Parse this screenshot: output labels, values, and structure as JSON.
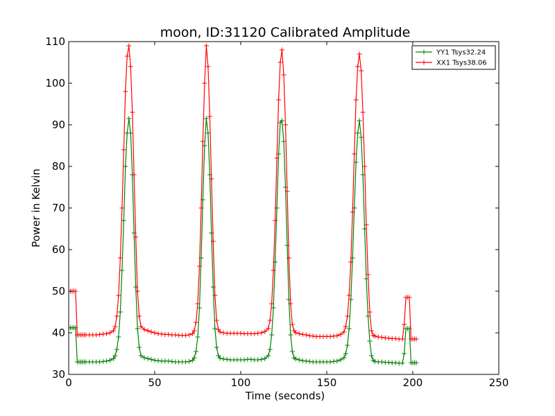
{
  "chart_data": {
    "type": "line",
    "title": "moon, ID:31120 Calibrated Amplitude",
    "xlabel": "Time (seconds)",
    "ylabel": "Power in Kelvin",
    "xlim": [
      0,
      250
    ],
    "ylim": [
      30,
      110
    ],
    "xticks": [
      0,
      50,
      100,
      150,
      200,
      250
    ],
    "yticks": [
      30,
      40,
      50,
      60,
      70,
      80,
      90,
      100,
      110
    ],
    "grid": false,
    "legend_position": "top-right",
    "marker": "+",
    "series": [
      {
        "name": "YY1 Tsys32.24",
        "color": "#008000",
        "x": [
          0,
          1,
          2,
          3,
          4,
          5,
          6,
          7,
          8,
          9,
          10,
          12,
          14,
          16,
          18,
          20,
          22,
          24,
          26,
          27,
          28,
          29,
          30,
          31,
          32,
          33,
          34,
          35,
          36,
          37,
          38,
          39,
          40,
          41,
          42,
          44,
          46,
          48,
          50,
          52,
          54,
          56,
          58,
          60,
          62,
          64,
          66,
          68,
          70,
          72,
          73,
          74,
          75,
          76,
          77,
          78,
          79,
          80,
          81,
          82,
          83,
          84,
          85,
          86,
          87,
          88,
          90,
          92,
          94,
          96,
          98,
          100,
          102,
          104,
          106,
          108,
          110,
          112,
          114,
          116,
          117,
          118,
          119,
          120,
          121,
          122,
          123,
          124,
          125,
          126,
          127,
          128,
          129,
          130,
          131,
          132,
          134,
          136,
          138,
          140,
          142,
          144,
          146,
          148,
          150,
          152,
          154,
          156,
          158,
          160,
          161,
          162,
          163,
          164,
          165,
          166,
          167,
          168,
          169,
          170,
          171,
          172,
          173,
          174,
          175,
          176,
          177,
          178,
          180,
          182,
          184,
          186,
          188,
          190,
          192,
          194,
          195,
          196,
          197,
          198,
          199,
          200,
          201,
          202
        ],
        "y": [
          41.2,
          41.2,
          41.2,
          41.2,
          41.2,
          33.0,
          33.0,
          33.0,
          33.0,
          33.0,
          33.0,
          33.0,
          33.0,
          33.0,
          33.0,
          33.1,
          33.2,
          33.4,
          33.8,
          34.5,
          36.0,
          39.0,
          45.0,
          55.0,
          67.0,
          80.0,
          88.0,
          91.5,
          88.0,
          78.0,
          64.0,
          51.0,
          41.0,
          36.5,
          34.5,
          34.0,
          33.8,
          33.6,
          33.4,
          33.3,
          33.2,
          33.2,
          33.2,
          33.1,
          33.0,
          33.0,
          33.0,
          33.0,
          33.1,
          33.4,
          34.0,
          35.5,
          39.0,
          46.0,
          58.0,
          72.0,
          85.0,
          91.5,
          88.0,
          78.0,
          64.0,
          51.0,
          41.0,
          36.5,
          34.5,
          33.9,
          33.7,
          33.6,
          33.5,
          33.5,
          33.5,
          33.5,
          33.5,
          33.6,
          33.6,
          33.5,
          33.5,
          33.6,
          33.8,
          34.5,
          36.0,
          39.5,
          46.0,
          57.0,
          70.0,
          83.0,
          90.5,
          91.0,
          86.0,
          75.0,
          61.0,
          48.0,
          39.5,
          35.5,
          34.0,
          33.7,
          33.5,
          33.3,
          33.2,
          33.1,
          33.0,
          33.0,
          33.0,
          33.0,
          33.0,
          33.0,
          33.1,
          33.2,
          33.5,
          34.0,
          35.0,
          37.0,
          41.0,
          48.0,
          58.0,
          70.0,
          81.0,
          88.0,
          91.0,
          87.0,
          78.0,
          65.0,
          53.0,
          44.0,
          38.0,
          34.5,
          33.4,
          33.1,
          33.0,
          33.0,
          32.9,
          32.9,
          32.8,
          32.8,
          32.7,
          32.7,
          35.0,
          41.0,
          41.0,
          41.0,
          32.8,
          32.8,
          32.8,
          32.8
        ]
      },
      {
        "name": "XX1 Tsys38.06",
        "color": "#ff0000",
        "x": [
          0,
          1,
          2,
          3,
          4,
          5,
          6,
          7,
          8,
          9,
          10,
          12,
          14,
          16,
          18,
          20,
          22,
          24,
          26,
          27,
          28,
          29,
          30,
          31,
          32,
          33,
          34,
          35,
          36,
          37,
          38,
          39,
          40,
          41,
          42,
          44,
          46,
          48,
          50,
          52,
          54,
          56,
          58,
          60,
          62,
          64,
          66,
          68,
          70,
          72,
          73,
          74,
          75,
          76,
          77,
          78,
          79,
          80,
          81,
          82,
          83,
          84,
          85,
          86,
          87,
          88,
          90,
          92,
          94,
          96,
          98,
          100,
          102,
          104,
          106,
          108,
          110,
          112,
          114,
          116,
          117,
          118,
          119,
          120,
          121,
          122,
          123,
          124,
          125,
          126,
          127,
          128,
          129,
          130,
          131,
          132,
          134,
          136,
          138,
          140,
          142,
          144,
          146,
          148,
          150,
          152,
          154,
          156,
          158,
          160,
          161,
          162,
          163,
          164,
          165,
          166,
          167,
          168,
          169,
          170,
          171,
          172,
          173,
          174,
          175,
          176,
          177,
          178,
          180,
          182,
          184,
          186,
          188,
          190,
          192,
          194,
          195,
          196,
          197,
          198,
          199,
          200,
          201,
          202
        ],
        "y": [
          50.0,
          50.0,
          50.0,
          50.0,
          50.0,
          39.5,
          39.5,
          39.5,
          39.5,
          39.5,
          39.5,
          39.5,
          39.5,
          39.5,
          39.6,
          39.7,
          39.8,
          40.0,
          40.5,
          41.5,
          44.0,
          49.0,
          58.0,
          70.0,
          84.0,
          98.0,
          106.5,
          109.0,
          104.0,
          93.0,
          78.0,
          63.0,
          50.0,
          44.0,
          41.5,
          40.8,
          40.5,
          40.2,
          40.0,
          39.8,
          39.7,
          39.6,
          39.6,
          39.5,
          39.5,
          39.4,
          39.4,
          39.4,
          39.5,
          39.8,
          40.5,
          42.5,
          47.0,
          56.0,
          70.0,
          86.0,
          100.0,
          109.0,
          104.0,
          92.0,
          77.0,
          62.0,
          49.0,
          43.0,
          40.8,
          40.2,
          40.0,
          39.9,
          39.9,
          39.9,
          39.9,
          39.9,
          39.8,
          39.8,
          39.8,
          39.8,
          39.9,
          40.0,
          40.3,
          41.0,
          43.0,
          47.0,
          55.0,
          67.0,
          82.0,
          96.0,
          105.0,
          108.0,
          102.0,
          90.0,
          74.0,
          58.0,
          47.0,
          42.0,
          40.5,
          40.0,
          39.8,
          39.6,
          39.5,
          39.3,
          39.2,
          39.1,
          39.1,
          39.1,
          39.1,
          39.1,
          39.2,
          39.3,
          39.6,
          40.2,
          41.5,
          44.0,
          49.0,
          57.0,
          69.0,
          83.0,
          96.0,
          104.0,
          107.0,
          103.0,
          93.0,
          80.0,
          66.0,
          54.0,
          45.0,
          40.5,
          39.4,
          39.2,
          39.0,
          38.9,
          38.8,
          38.7,
          38.6,
          38.6,
          38.5,
          38.5,
          42.0,
          48.5,
          48.5,
          48.5,
          38.5,
          38.5,
          38.5,
          38.5
        ]
      }
    ]
  }
}
